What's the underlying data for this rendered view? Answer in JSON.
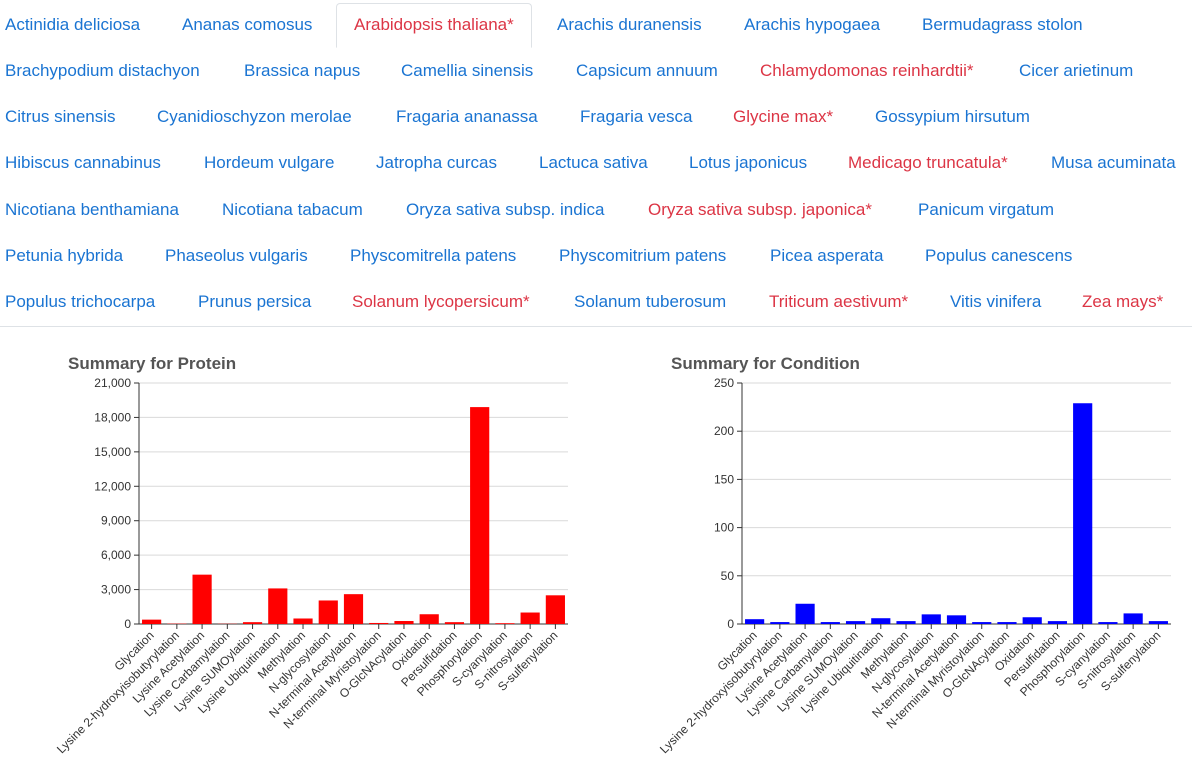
{
  "tabs": [
    {
      "label": "Actinidia deliciosa",
      "color": "blue"
    },
    {
      "label": "Ananas comosus",
      "color": "blue"
    },
    {
      "label": "Arabidopsis thaliana*",
      "color": "red",
      "active": true
    },
    {
      "label": "Arachis duranensis",
      "color": "blue"
    },
    {
      "label": "Arachis hypogaea",
      "color": "blue"
    },
    {
      "label": "Bermudagrass stolon",
      "color": "blue"
    },
    {
      "label": "Brachypodium distachyon",
      "color": "blue"
    },
    {
      "label": "Brassica napus",
      "color": "blue"
    },
    {
      "label": "Camellia sinensis",
      "color": "blue"
    },
    {
      "label": "Capsicum annuum",
      "color": "blue"
    },
    {
      "label": "Chlamydomonas reinhardtii*",
      "color": "red"
    },
    {
      "label": "Cicer arietinum",
      "color": "blue"
    },
    {
      "label": "Citrus sinensis",
      "color": "blue"
    },
    {
      "label": "Cyanidioschyzon merolae",
      "color": "blue"
    },
    {
      "label": "Fragaria ananassa",
      "color": "blue"
    },
    {
      "label": "Fragaria vesca",
      "color": "blue"
    },
    {
      "label": "Glycine max*",
      "color": "red"
    },
    {
      "label": "Gossypium hirsutum",
      "color": "blue"
    },
    {
      "label": "Hibiscus cannabinus",
      "color": "blue"
    },
    {
      "label": "Hordeum vulgare",
      "color": "blue"
    },
    {
      "label": "Jatropha curcas",
      "color": "blue"
    },
    {
      "label": "Lactuca sativa",
      "color": "blue"
    },
    {
      "label": "Lotus japonicus",
      "color": "blue"
    },
    {
      "label": "Medicago truncatula*",
      "color": "red"
    },
    {
      "label": "Musa acuminata",
      "color": "blue"
    },
    {
      "label": "Nicotiana benthamiana",
      "color": "blue"
    },
    {
      "label": "Nicotiana tabacum",
      "color": "blue"
    },
    {
      "label": "Oryza sativa subsp. indica",
      "color": "blue"
    },
    {
      "label": "Oryza sativa subsp. japonica*",
      "color": "red"
    },
    {
      "label": "Panicum virgatum",
      "color": "blue"
    },
    {
      "label": "Petunia hybrida",
      "color": "blue"
    },
    {
      "label": "Phaseolus vulgaris",
      "color": "blue"
    },
    {
      "label": "Physcomitrella patens",
      "color": "blue"
    },
    {
      "label": "Physcomitrium patens",
      "color": "blue"
    },
    {
      "label": "Picea asperata",
      "color": "blue"
    },
    {
      "label": "Populus canescens",
      "color": "blue"
    },
    {
      "label": "Populus trichocarpa",
      "color": "blue"
    },
    {
      "label": "Prunus persica",
      "color": "blue"
    },
    {
      "label": "Solanum lycopersicum*",
      "color": "red"
    },
    {
      "label": "Solanum tuberosum",
      "color": "blue"
    },
    {
      "label": "Triticum aestivum*",
      "color": "red"
    },
    {
      "label": "Vitis vinifera",
      "color": "blue"
    },
    {
      "label": "Zea mays*",
      "color": "red"
    }
  ],
  "colors": {
    "link": "#1a74d2",
    "highlight": "#dc3545"
  },
  "chart_data": [
    {
      "type": "bar",
      "title": "Summary for Protein",
      "color": "#ff0000",
      "categories": [
        "Glycation",
        "Lysine 2-hydroxyisobutyrylation",
        "Lysine Acetylation",
        "Lysine Carbamylation",
        "Lysine SUMOylation",
        "Lysine Ubiquitination",
        "Methylation",
        "N-glycosylation",
        "N-terminal Acetylation",
        "N-terminal Myristoylation",
        "O-GlcNAcylation",
        "Oxidation",
        "Persulfidation",
        "Phosphorylation",
        "S-cyanylation",
        "S-nitrosylation",
        "S-sulfenylation"
      ],
      "values": [
        380,
        30,
        4300,
        20,
        160,
        3100,
        480,
        2050,
        2600,
        90,
        260,
        850,
        160,
        18900,
        70,
        1000,
        2500
      ],
      "ylim": [
        0,
        21000
      ],
      "yticks": [
        "0",
        "3,000",
        "6,000",
        "9,000",
        "12,000",
        "15,000",
        "18,000",
        "21,000"
      ],
      "grid": true
    },
    {
      "type": "bar",
      "title": "Summary for Condition",
      "color": "#0000ff",
      "categories": [
        "Glycation",
        "Lysine 2-hydroxyisobutyrylation",
        "Lysine Acetylation",
        "Lysine Carbamylation",
        "Lysine SUMOylation",
        "Lysine Ubiquitination",
        "Methylation",
        "N-glycosylation",
        "N-terminal Acetylation",
        "N-terminal Myristoylation",
        "O-GlcNAcylation",
        "Oxidation",
        "Persulfidation",
        "Phosphorylation",
        "S-cyanylation",
        "S-nitrosylation",
        "S-sulfenylation"
      ],
      "values": [
        5,
        2,
        21,
        2,
        3,
        6,
        3,
        10,
        9,
        2,
        2,
        7,
        3,
        229,
        2,
        11,
        3
      ],
      "ylim": [
        0,
        250
      ],
      "yticks": [
        "0",
        "50",
        "100",
        "150",
        "200",
        "250"
      ],
      "grid": true
    }
  ]
}
